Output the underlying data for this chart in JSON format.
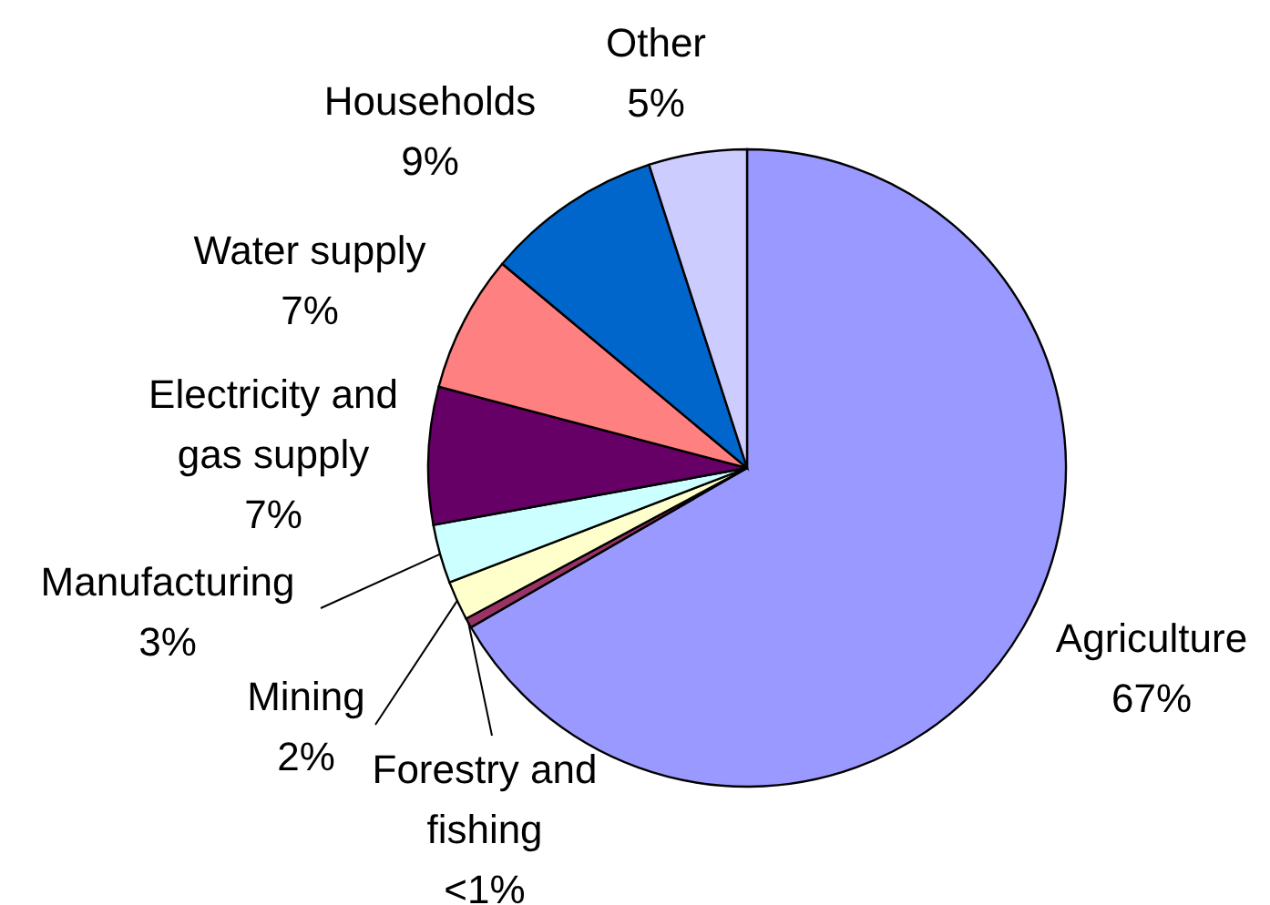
{
  "chart_data": {
    "type": "pie",
    "categories": [
      "Agriculture",
      "Forestry and fishing",
      "Mining",
      "Manufacturing",
      "Electricity and gas supply",
      "Water supply",
      "Households",
      "Other"
    ],
    "values": [
      67,
      0.5,
      2,
      3,
      7,
      7,
      9,
      5
    ],
    "value_labels": [
      "67%",
      "<1%",
      "2%",
      "3%",
      "7%",
      "7%",
      "9%",
      "5%"
    ],
    "colors": [
      "#9999ff",
      "#993366",
      "#ffffcc",
      "#ccffff",
      "#660066",
      "#ff8080",
      "#0066cc",
      "#ccccff"
    ]
  }
}
